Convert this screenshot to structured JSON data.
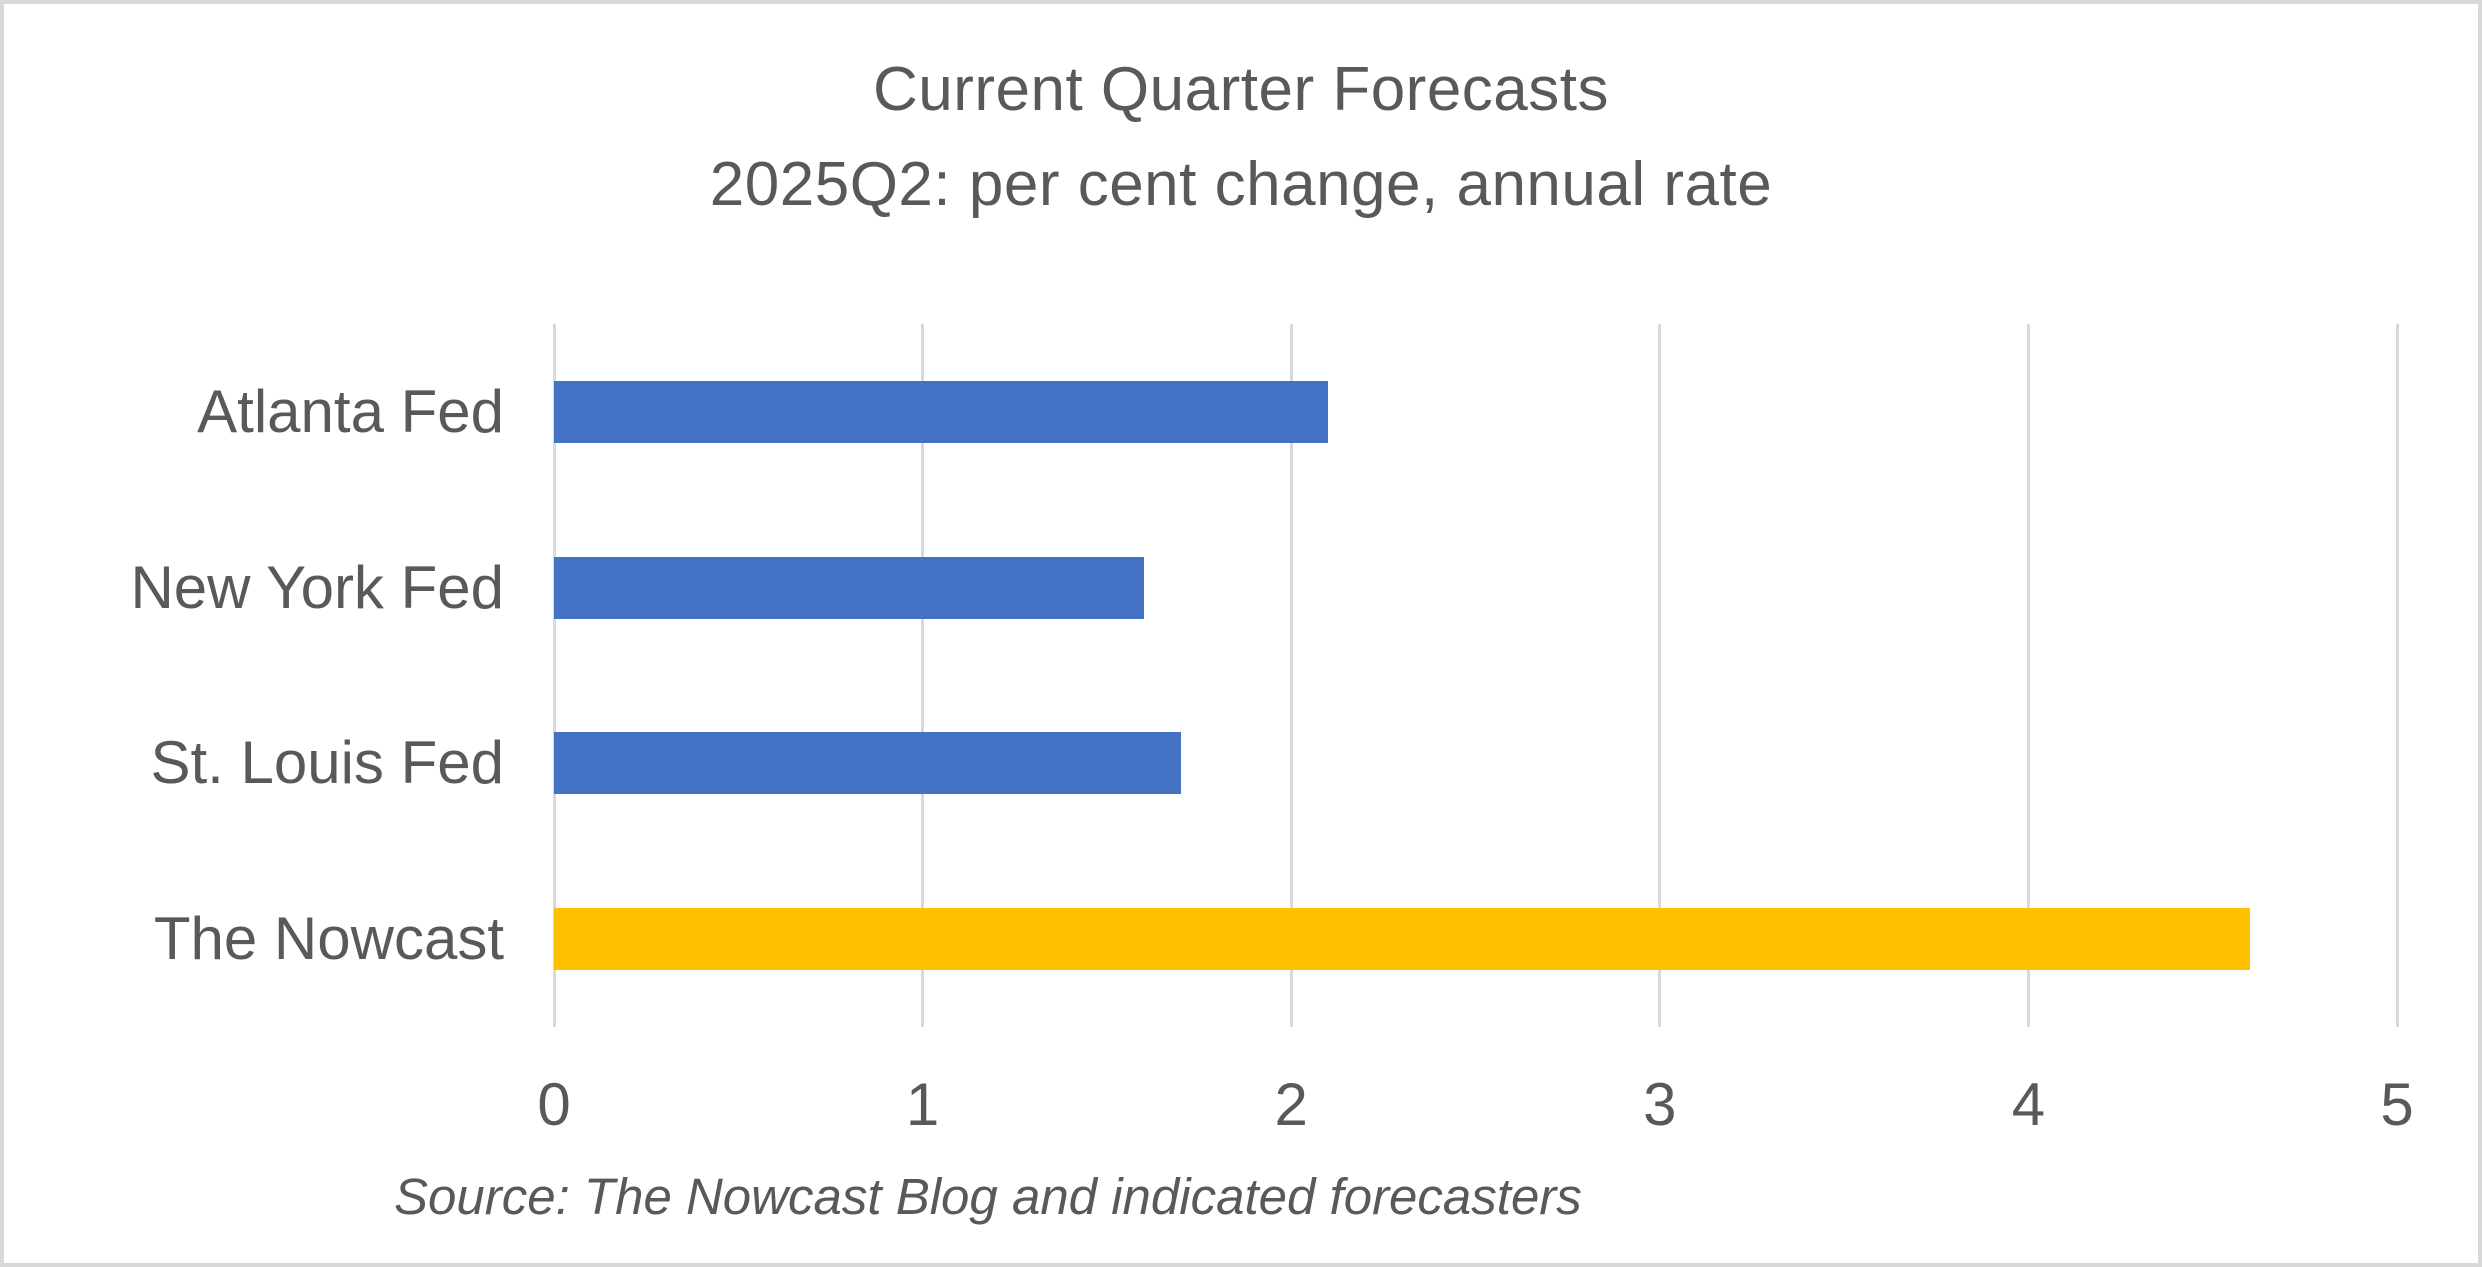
{
  "title": {
    "line1": "Current Quarter Forecasts",
    "line2": "2025Q2: per cent change, annual rate"
  },
  "source_note": "Source: The Nowcast Blog and indicated forecasters",
  "colors": {
    "text": "#595959",
    "gridline": "#D9D9D9",
    "border": "#D8D8D8",
    "background": "#FFFFFF",
    "bar_blue": "#4472C4",
    "bar_gold": "#FFC000"
  },
  "chart_data": {
    "type": "bar",
    "orientation": "horizontal",
    "title": "Current Quarter Forecasts",
    "subtitle": "2025Q2: per cent change, annual rate",
    "categories": [
      "Atlanta Fed",
      "New York Fed",
      "St. Louis Fed",
      "The Nowcast"
    ],
    "values": [
      2.1,
      1.6,
      1.7,
      4.6
    ],
    "bar_colors": [
      "#4472C4",
      "#4472C4",
      "#4472C4",
      "#FFC000"
    ],
    "xlabel": "",
    "ylabel": "",
    "xlim": [
      0,
      5
    ],
    "x_ticks": [
      0,
      1,
      2,
      3,
      4,
      5
    ],
    "x_tick_labels": [
      "0",
      "1",
      "2",
      "3",
      "4",
      "5"
    ],
    "grid": true,
    "legend": false,
    "source_note": "Source: The Nowcast Blog and indicated forecasters"
  }
}
